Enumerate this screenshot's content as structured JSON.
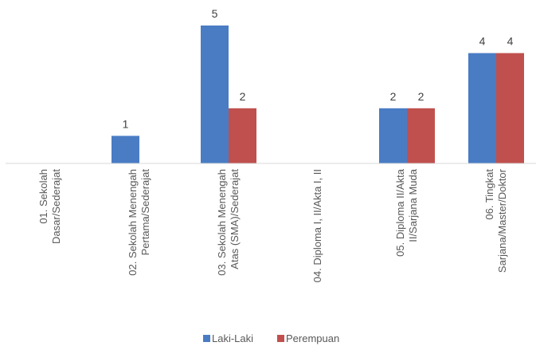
{
  "chart_data": {
    "type": "bar",
    "categories": [
      "01. Sekolah\nDasar/Sederajat",
      "02. Sekolah Menengah\nPertama/Sederajat",
      "03. Sekolah Menengah\nAtas (SMA)/Sederajat",
      "04. Diploma I, II/Akta I, II",
      "05. Diploma II/Akta\nII/Sarjana Muda",
      "06. Tingkat\nSarjana/Master/Doktor"
    ],
    "series": [
      {
        "name": "Laki-Laki",
        "color": "#4a7cc4",
        "values": [
          null,
          1,
          5,
          null,
          2,
          4
        ]
      },
      {
        "name": "Perempuan",
        "color": "#c0504d",
        "values": [
          null,
          null,
          2,
          null,
          2,
          4
        ]
      }
    ],
    "ylim": [
      0,
      5
    ]
  }
}
